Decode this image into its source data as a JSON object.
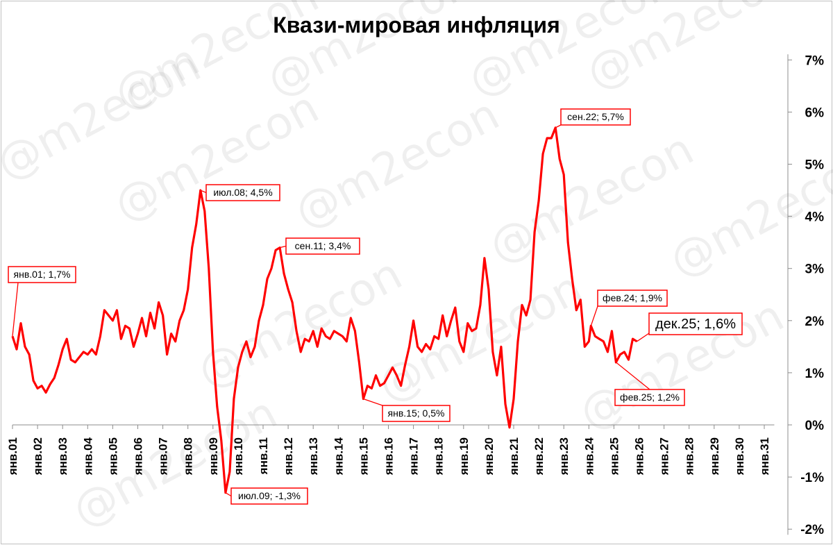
{
  "chart_data": {
    "type": "line",
    "title": "Квази-мировая инфляция",
    "watermark": "@m2econ",
    "line_color": "#ff0000",
    "y_unit": "%",
    "ylim": [
      -2,
      7
    ],
    "yticks": [
      "-2%",
      "-1%",
      "0%",
      "1%",
      "2%",
      "3%",
      "4%",
      "5%",
      "6%",
      "7%"
    ],
    "y_axis_position": "right",
    "x_range": [
      "2001-01",
      "2031-06"
    ],
    "xticks": [
      "янв.01",
      "янв.02",
      "янв.03",
      "янв.04",
      "янв.05",
      "янв.06",
      "янв.07",
      "янв.08",
      "янв.09",
      "янв.10",
      "янв.11",
      "янв.12",
      "янв.13",
      "янв.14",
      "янв.15",
      "янв.16",
      "янв.17",
      "янв.18",
      "янв.19",
      "янв.20",
      "янв.21",
      "янв.22",
      "янв.23",
      "янв.24",
      "янв.25",
      "янв.26",
      "янв.27",
      "янв.28",
      "янв.29",
      "янв.30",
      "янв.31"
    ],
    "grid": false,
    "series": [
      {
        "points": [
          [
            "2001-01",
            1.7
          ],
          [
            "2001-03",
            1.45
          ],
          [
            "2001-05",
            1.95
          ],
          [
            "2001-07",
            1.5
          ],
          [
            "2001-09",
            1.35
          ],
          [
            "2001-11",
            0.85
          ],
          [
            "2002-01",
            0.7
          ],
          [
            "2002-03",
            0.75
          ],
          [
            "2002-05",
            0.62
          ],
          [
            "2002-07",
            0.78
          ],
          [
            "2002-09",
            0.9
          ],
          [
            "2002-11",
            1.15
          ],
          [
            "2003-01",
            1.45
          ],
          [
            "2003-03",
            1.65
          ],
          [
            "2003-05",
            1.25
          ],
          [
            "2003-07",
            1.2
          ],
          [
            "2003-09",
            1.3
          ],
          [
            "2003-11",
            1.4
          ],
          [
            "2004-01",
            1.35
          ],
          [
            "2004-03",
            1.45
          ],
          [
            "2004-05",
            1.35
          ],
          [
            "2004-07",
            1.7
          ],
          [
            "2004-09",
            2.2
          ],
          [
            "2004-11",
            2.1
          ],
          [
            "2005-01",
            2.0
          ],
          [
            "2005-03",
            2.2
          ],
          [
            "2005-05",
            1.65
          ],
          [
            "2005-07",
            1.9
          ],
          [
            "2005-09",
            1.85
          ],
          [
            "2005-11",
            1.5
          ],
          [
            "2006-01",
            1.75
          ],
          [
            "2006-03",
            2.05
          ],
          [
            "2006-05",
            1.7
          ],
          [
            "2006-07",
            2.15
          ],
          [
            "2006-09",
            1.85
          ],
          [
            "2006-11",
            2.35
          ],
          [
            "2007-01",
            2.1
          ],
          [
            "2007-03",
            1.35
          ],
          [
            "2007-05",
            1.75
          ],
          [
            "2007-07",
            1.6
          ],
          [
            "2007-09",
            2.0
          ],
          [
            "2007-11",
            2.2
          ],
          [
            "2008-01",
            2.6
          ],
          [
            "2008-03",
            3.4
          ],
          [
            "2008-05",
            3.85
          ],
          [
            "2008-07",
            4.5
          ],
          [
            "2008-09",
            4.1
          ],
          [
            "2008-11",
            3.0
          ],
          [
            "2009-01",
            1.4
          ],
          [
            "2009-03",
            0.35
          ],
          [
            "2009-05",
            -0.3
          ],
          [
            "2009-07",
            -1.3
          ],
          [
            "2009-09",
            -0.9
          ],
          [
            "2009-11",
            0.5
          ],
          [
            "2010-01",
            1.1
          ],
          [
            "2010-03",
            1.4
          ],
          [
            "2010-05",
            1.6
          ],
          [
            "2010-07",
            1.3
          ],
          [
            "2010-09",
            1.5
          ],
          [
            "2010-11",
            2.0
          ],
          [
            "2011-01",
            2.3
          ],
          [
            "2011-03",
            2.8
          ],
          [
            "2011-05",
            3.0
          ],
          [
            "2011-07",
            3.35
          ],
          [
            "2011-09",
            3.4
          ],
          [
            "2011-11",
            2.9
          ],
          [
            "2012-01",
            2.6
          ],
          [
            "2012-03",
            2.35
          ],
          [
            "2012-05",
            1.8
          ],
          [
            "2012-07",
            1.4
          ],
          [
            "2012-09",
            1.65
          ],
          [
            "2012-11",
            1.6
          ],
          [
            "2013-01",
            1.8
          ],
          [
            "2013-03",
            1.5
          ],
          [
            "2013-05",
            1.85
          ],
          [
            "2013-07",
            1.7
          ],
          [
            "2013-09",
            1.65
          ],
          [
            "2013-11",
            1.8
          ],
          [
            "2014-01",
            1.75
          ],
          [
            "2014-03",
            1.7
          ],
          [
            "2014-05",
            1.6
          ],
          [
            "2014-07",
            2.05
          ],
          [
            "2014-09",
            1.8
          ],
          [
            "2014-11",
            1.2
          ],
          [
            "2015-01",
            0.5
          ],
          [
            "2015-03",
            0.75
          ],
          [
            "2015-05",
            0.7
          ],
          [
            "2015-07",
            0.95
          ],
          [
            "2015-09",
            0.75
          ],
          [
            "2015-11",
            0.8
          ],
          [
            "2016-01",
            0.95
          ],
          [
            "2016-03",
            1.1
          ],
          [
            "2016-05",
            0.95
          ],
          [
            "2016-07",
            0.75
          ],
          [
            "2016-09",
            1.15
          ],
          [
            "2016-11",
            1.5
          ],
          [
            "2017-01",
            2.0
          ],
          [
            "2017-03",
            1.5
          ],
          [
            "2017-05",
            1.4
          ],
          [
            "2017-07",
            1.55
          ],
          [
            "2017-09",
            1.45
          ],
          [
            "2017-11",
            1.7
          ],
          [
            "2018-01",
            1.65
          ],
          [
            "2018-03",
            2.1
          ],
          [
            "2018-05",
            1.7
          ],
          [
            "2018-07",
            2.0
          ],
          [
            "2018-09",
            2.25
          ],
          [
            "2018-11",
            1.6
          ],
          [
            "2019-01",
            1.4
          ],
          [
            "2019-03",
            1.95
          ],
          [
            "2019-05",
            1.8
          ],
          [
            "2019-07",
            1.85
          ],
          [
            "2019-09",
            2.3
          ],
          [
            "2019-11",
            3.2
          ],
          [
            "2020-01",
            2.6
          ],
          [
            "2020-03",
            1.4
          ],
          [
            "2020-05",
            0.95
          ],
          [
            "2020-07",
            1.5
          ],
          [
            "2020-09",
            0.4
          ],
          [
            "2020-11",
            -0.05
          ],
          [
            "2021-01",
            0.5
          ],
          [
            "2021-03",
            1.6
          ],
          [
            "2021-05",
            2.3
          ],
          [
            "2021-07",
            2.1
          ],
          [
            "2021-09",
            2.4
          ],
          [
            "2021-11",
            3.7
          ],
          [
            "2022-01",
            4.3
          ],
          [
            "2022-03",
            5.2
          ],
          [
            "2022-05",
            5.5
          ],
          [
            "2022-07",
            5.5
          ],
          [
            "2022-09",
            5.7
          ],
          [
            "2022-11",
            5.1
          ],
          [
            "2023-01",
            4.8
          ],
          [
            "2023-03",
            3.5
          ],
          [
            "2023-05",
            2.8
          ],
          [
            "2023-07",
            2.2
          ],
          [
            "2023-09",
            2.4
          ],
          [
            "2023-11",
            1.5
          ],
          [
            "2024-01",
            1.6
          ],
          [
            "2024-02",
            1.9
          ],
          [
            "2024-04",
            1.7
          ],
          [
            "2024-06",
            1.65
          ],
          [
            "2024-08",
            1.6
          ],
          [
            "2024-10",
            1.4
          ],
          [
            "2024-12",
            1.8
          ],
          [
            "2025-02",
            1.2
          ],
          [
            "2025-04",
            1.35
          ],
          [
            "2025-06",
            1.4
          ],
          [
            "2025-08",
            1.25
          ],
          [
            "2025-10",
            1.65
          ],
          [
            "2025-12",
            1.6
          ]
        ]
      }
    ],
    "annotations": [
      {
        "label": "янв.01; 1,7%",
        "x": "2001-01",
        "y": 1.7
      },
      {
        "label": "июл.08; 4,5%",
        "x": "2008-07",
        "y": 4.5
      },
      {
        "label": "июл.09; -1,3%",
        "x": "2009-07",
        "y": -1.3
      },
      {
        "label": "сен.11; 3,4%",
        "x": "2011-09",
        "y": 3.4
      },
      {
        "label": "янв.15; 0,5%",
        "x": "2015-01",
        "y": 0.5
      },
      {
        "label": "сен.22; 5,7%",
        "x": "2022-09",
        "y": 5.7
      },
      {
        "label": "фев.24; 1,9%",
        "x": "2024-02",
        "y": 1.9
      },
      {
        "label": "фев.25; 1,2%",
        "x": "2025-02",
        "y": 1.2
      },
      {
        "label": "дек.25; 1,6%",
        "x": "2025-12",
        "y": 1.6
      }
    ]
  }
}
